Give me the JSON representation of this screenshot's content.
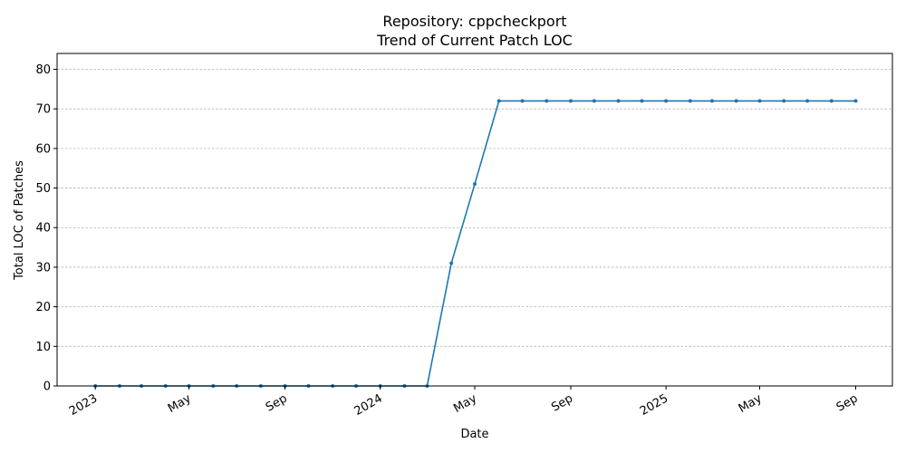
{
  "chart_data": {
    "type": "line",
    "title": "Repository: cppcheckport",
    "subtitle": "Trend of Current Patch LOC",
    "xlabel": "Date",
    "ylabel": "Total LOC of Patches",
    "ylim": [
      0,
      84
    ],
    "yticks": [
      0,
      10,
      20,
      30,
      40,
      50,
      60,
      70,
      80
    ],
    "xlim": [
      "2022-11-13",
      "2025-10-18"
    ],
    "xticks": [
      {
        "date": "2023-01-01",
        "label": "2023"
      },
      {
        "date": "2023-05-01",
        "label": "May"
      },
      {
        "date": "2023-09-01",
        "label": "Sep"
      },
      {
        "date": "2024-01-01",
        "label": "2024"
      },
      {
        "date": "2024-05-01",
        "label": "May"
      },
      {
        "date": "2024-09-01",
        "label": "Sep"
      },
      {
        "date": "2025-01-01",
        "label": "2025"
      },
      {
        "date": "2025-05-01",
        "label": "May"
      },
      {
        "date": "2025-09-01",
        "label": "Sep"
      }
    ],
    "grid": "y",
    "series": [
      {
        "color": "#1f77b4",
        "x": [
          "2023-01-01",
          "2023-02-01",
          "2023-03-01",
          "2023-04-01",
          "2023-05-01",
          "2023-06-01",
          "2023-07-01",
          "2023-08-01",
          "2023-09-01",
          "2023-10-01",
          "2023-11-01",
          "2023-12-01",
          "2024-01-01",
          "2024-02-01",
          "2024-03-01",
          "2024-04-01",
          "2024-05-01",
          "2024-06-01",
          "2024-07-01",
          "2024-08-01",
          "2024-09-01",
          "2024-10-01",
          "2024-11-01",
          "2024-12-01",
          "2025-01-01",
          "2025-02-01",
          "2025-03-01",
          "2025-04-01",
          "2025-05-01",
          "2025-06-01",
          "2025-07-01",
          "2025-08-01",
          "2025-09-01"
        ],
        "y": [
          0,
          0,
          0,
          0,
          0,
          0,
          0,
          0,
          0,
          0,
          0,
          0,
          0,
          0,
          0,
          31,
          51,
          72,
          72,
          72,
          72,
          72,
          72,
          72,
          72,
          72,
          72,
          72,
          72,
          72,
          72,
          72,
          72
        ]
      }
    ]
  }
}
